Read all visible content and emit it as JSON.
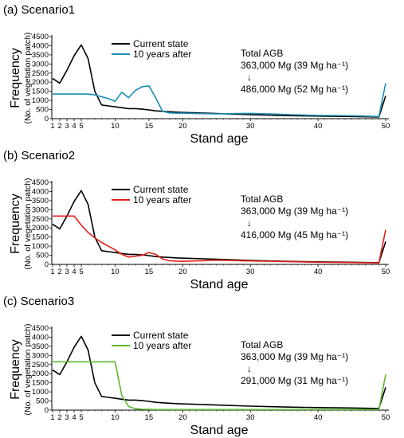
{
  "chart_data": [
    {
      "type": "line",
      "panel_label": "(a) Scenario1",
      "ylabel": "Frequency",
      "ylabel2": "(No. of vegetation patch)",
      "xlabel": "Stand age",
      "ylim": [
        0,
        4500
      ],
      "xlim": [
        1,
        50
      ],
      "yticks": [
        "0",
        "500",
        "1000",
        "1500",
        "2000",
        "2500",
        "3000",
        "3500",
        "4000",
        "4500"
      ],
      "xticks": [
        "1",
        "2",
        "3",
        "4",
        "5",
        "10",
        "15",
        "20",
        "30",
        "40",
        "50"
      ],
      "annotation": {
        "line1": "Total AGB",
        "line2": "363,000 Mg (39 Mg ha⁻¹)",
        "arrow": "↓",
        "line3": "486,000 Mg (52 Mg ha⁻¹)"
      },
      "series": [
        {
          "name": "Current state",
          "color": "#000000",
          "x": [
            1,
            2,
            3,
            4,
            5,
            6,
            7,
            8,
            9,
            10,
            11,
            12,
            13,
            14,
            15,
            16,
            17,
            18,
            19,
            20,
            22,
            25,
            30,
            35,
            40,
            45,
            49,
            50
          ],
          "y": [
            2200,
            1950,
            2650,
            3450,
            4050,
            3300,
            1500,
            750,
            700,
            650,
            600,
            550,
            550,
            520,
            480,
            430,
            400,
            380,
            360,
            340,
            320,
            280,
            220,
            170,
            140,
            120,
            90,
            1250
          ]
        },
        {
          "name": "10 years after",
          "color": "#1a8db5",
          "x": [
            1,
            2,
            3,
            4,
            5,
            6,
            7,
            8,
            9,
            10,
            11,
            12,
            13,
            14,
            15,
            16,
            17,
            18,
            19,
            20,
            22,
            25,
            28,
            30,
            33,
            36,
            40,
            45,
            49,
            50
          ],
          "y": [
            1350,
            1350,
            1350,
            1350,
            1350,
            1350,
            1300,
            1200,
            1100,
            950,
            1450,
            1150,
            1550,
            1750,
            1800,
            1150,
            400,
            320,
            300,
            300,
            280,
            260,
            280,
            290,
            260,
            220,
            180,
            160,
            120,
            1950
          ]
        }
      ]
    },
    {
      "type": "line",
      "panel_label": "(b) Scenario2",
      "ylabel": "Frequency",
      "ylabel2": "(No. of vegetation patch)",
      "xlabel": "Stand age",
      "ylim": [
        0,
        4500
      ],
      "xlim": [
        1,
        50
      ],
      "yticks": [
        "0",
        "500",
        "1000",
        "1500",
        "2000",
        "2500",
        "3000",
        "3500",
        "4000",
        "4500"
      ],
      "xticks": [
        "1",
        "2",
        "3",
        "4",
        "5",
        "10",
        "15",
        "20",
        "30",
        "40",
        "50"
      ],
      "annotation": {
        "line1": "Total AGB",
        "line2": "363,000 Mg (39 Mg ha⁻¹)",
        "arrow": "↓",
        "line3": "416,000 Mg (45 Mg ha⁻¹)"
      },
      "series": [
        {
          "name": "Current state",
          "color": "#000000",
          "x": [
            1,
            2,
            3,
            4,
            5,
            6,
            7,
            8,
            9,
            10,
            11,
            12,
            13,
            14,
            15,
            16,
            17,
            18,
            19,
            20,
            22,
            25,
            30,
            35,
            40,
            45,
            49,
            50
          ],
          "y": [
            2200,
            1950,
            2650,
            3450,
            4050,
            3300,
            1500,
            750,
            700,
            650,
            600,
            550,
            550,
            520,
            480,
            430,
            400,
            380,
            360,
            340,
            320,
            280,
            220,
            170,
            140,
            120,
            90,
            1250
          ]
        },
        {
          "name": "10 years after",
          "color": "#e0201b",
          "x": [
            1,
            2,
            3,
            4,
            5,
            6,
            7,
            8,
            9,
            10,
            11,
            12,
            13,
            14,
            15,
            16,
            17,
            18,
            19,
            20,
            22,
            25,
            28,
            30,
            33,
            36,
            40,
            45,
            49,
            50
          ],
          "y": [
            2650,
            2650,
            2650,
            2650,
            2150,
            1750,
            1450,
            1200,
            1000,
            800,
            550,
            400,
            450,
            500,
            650,
            550,
            300,
            200,
            180,
            170,
            190,
            230,
            210,
            190,
            170,
            150,
            120,
            100,
            80,
            1900
          ]
        }
      ]
    },
    {
      "type": "line",
      "panel_label": "(c) Scenario3",
      "ylabel": "Frequency",
      "ylabel2": "(No. of vegetation patch)",
      "xlabel": "Stand age",
      "ylim": [
        0,
        4500
      ],
      "xlim": [
        1,
        50
      ],
      "yticks": [
        "0",
        "500",
        "1000",
        "1500",
        "2000",
        "2500",
        "3000",
        "3500",
        "4000",
        "4500"
      ],
      "xticks": [
        "1",
        "2",
        "3",
        "4",
        "5",
        "10",
        "15",
        "20",
        "30",
        "40",
        "50"
      ],
      "annotation": {
        "line1": "Total AGB",
        "line2": "363,000 Mg (39 Mg ha⁻¹)",
        "arrow": "↓",
        "line3": "291,000 Mg (31 Mg ha⁻¹)"
      },
      "series": [
        {
          "name": "Current state",
          "color": "#000000",
          "x": [
            1,
            2,
            3,
            4,
            5,
            6,
            7,
            8,
            9,
            10,
            11,
            12,
            13,
            14,
            15,
            16,
            17,
            18,
            19,
            20,
            22,
            25,
            30,
            35,
            40,
            45,
            49,
            50
          ],
          "y": [
            2200,
            1950,
            2650,
            3450,
            4050,
            3300,
            1500,
            750,
            700,
            650,
            600,
            550,
            550,
            520,
            480,
            430,
            400,
            380,
            360,
            340,
            320,
            280,
            220,
            170,
            140,
            120,
            90,
            1250
          ]
        },
        {
          "name": "10 years after",
          "color": "#5cb82e",
          "x": [
            1,
            2,
            3,
            4,
            5,
            6,
            7,
            8,
            9,
            10,
            11,
            12,
            13,
            14,
            15,
            16,
            20,
            25,
            30,
            40,
            45,
            49,
            50
          ],
          "y": [
            2650,
            2650,
            2650,
            2650,
            2650,
            2650,
            2650,
            2650,
            2650,
            2650,
            800,
            200,
            80,
            50,
            40,
            30,
            30,
            30,
            30,
            30,
            30,
            30,
            1950
          ]
        }
      ]
    }
  ]
}
